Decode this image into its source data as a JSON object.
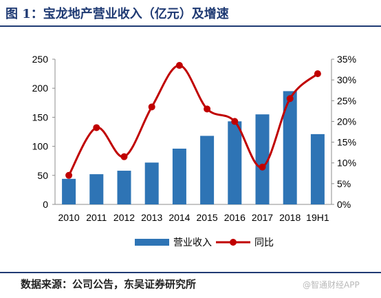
{
  "figure": {
    "title": "图 1：宝龙地产营业收入（亿元）及增速",
    "source": "数据来源：公司公告，东吴证券研究所",
    "watermark": "@智通财经APP"
  },
  "chart_data": {
    "type": "bar",
    "categories": [
      "2010",
      "2011",
      "2012",
      "2013",
      "2014",
      "2015",
      "2016",
      "2017",
      "2018",
      "19H1"
    ],
    "series": [
      {
        "name": "营业收入",
        "type": "bar",
        "axis": "left",
        "color": "#2e74b5",
        "values": [
          44,
          52,
          58,
          72,
          96,
          118,
          143,
          155,
          195,
          121
        ]
      },
      {
        "name": "同比",
        "type": "line",
        "axis": "right",
        "color": "#c00000",
        "values": [
          0.07,
          0.185,
          0.115,
          0.235,
          0.335,
          0.23,
          0.2,
          0.09,
          0.255,
          0.315
        ]
      }
    ],
    "y_left": {
      "min": 0,
      "max": 250,
      "ticks": [
        "0",
        "50",
        "100",
        "150",
        "200",
        "250"
      ]
    },
    "y_right": {
      "min": 0,
      "max": 0.35,
      "ticks": [
        "0%",
        "5%",
        "10%",
        "15%",
        "20%",
        "25%",
        "30%",
        "35%"
      ]
    },
    "grid": false,
    "legend_position": "bottom"
  }
}
